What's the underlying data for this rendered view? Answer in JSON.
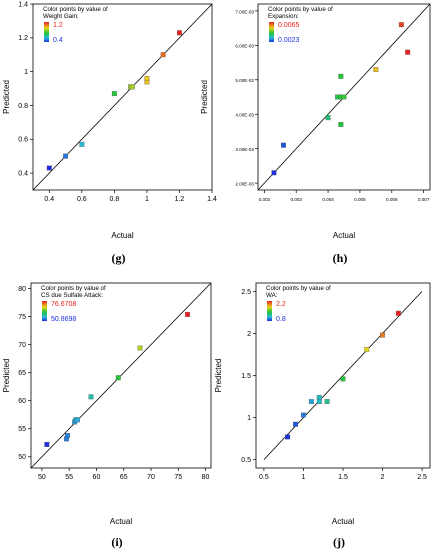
{
  "chart_data": [
    {
      "type": "scatter",
      "panel_label": "(g)",
      "xlabel": "Actual",
      "ylabel": "Predicted",
      "xlim": [
        0.3,
        1.4
      ],
      "ylim": [
        0.3,
        1.4
      ],
      "xticks": [
        0.4,
        0.6,
        0.8,
        1.0,
        1.2,
        1.4
      ],
      "yticks": [
        0.4,
        0.6,
        0.8,
        1.0,
        1.2,
        1.4
      ],
      "xtick_labels": [
        "0.4",
        "0.6",
        "0.8",
        "1",
        "1.2",
        "1.4"
      ],
      "ytick_labels": [
        "0.4",
        "0.6",
        "0.8",
        "1",
        "1.2",
        "1.4"
      ],
      "legend": {
        "title_lines": [
          "Color points by value of",
          "Weight Gain:"
        ],
        "max": "1.2",
        "min": "0.4",
        "high": 1.2,
        "low": 0.4
      },
      "diagonal": [
        0.3,
        1.4
      ],
      "x": [
        0.4,
        0.5,
        0.6,
        0.8,
        0.9,
        0.91,
        1.0,
        1.0,
        1.1,
        1.2
      ],
      "y": [
        0.43,
        0.5,
        0.57,
        0.87,
        0.91,
        0.91,
        0.94,
        0.96,
        1.1,
        1.23
      ]
    },
    {
      "type": "scatter",
      "panel_label": "(h)",
      "xlabel": "Actual",
      "ylabel": "Predicted",
      "xlim": [
        0.0018,
        0.0072
      ],
      "ylim": [
        0.0018,
        0.0072
      ],
      "xticks": [
        0.002,
        0.003,
        0.004,
        0.005,
        0.006,
        0.007
      ],
      "yticks": [
        0.002,
        0.003,
        0.004,
        0.005,
        0.006,
        0.007
      ],
      "xtick_labels": [
        "0.002",
        "0.003",
        "0.004",
        "0.005",
        "0.006",
        "0.007"
      ],
      "ytick_labels": [
        "2.00E-03",
        "3.00E-03",
        "4.00E-03",
        "5.00E-03",
        "6.00E-03",
        "7.00E-03"
      ],
      "legend": {
        "title_lines": [
          "Color points by value of",
          "Expansion:"
        ],
        "max": "0.0065",
        "min": "0.0023",
        "high": 0.0065,
        "low": 0.0023
      },
      "diagonal": [
        0.0018,
        0.0072
      ],
      "x": [
        0.0023,
        0.0026,
        0.004,
        0.0043,
        0.0044,
        0.0045,
        0.0044,
        0.0044,
        0.0055,
        0.0063,
        0.0065
      ],
      "y": [
        0.0023,
        0.0031,
        0.0039,
        0.0045,
        0.0045,
        0.0045,
        0.0051,
        0.0037,
        0.0053,
        0.0066,
        0.0058
      ]
    },
    {
      "type": "scatter",
      "panel_label": "(i)",
      "xlabel": "Actual",
      "ylabel": "Predicted",
      "xlim": [
        48,
        81
      ],
      "ylim": [
        48,
        81
      ],
      "xticks": [
        50,
        55,
        60,
        65,
        70,
        75,
        80
      ],
      "yticks": [
        50,
        55,
        60,
        65,
        70,
        75,
        80
      ],
      "xtick_labels": [
        "50",
        "55",
        "60",
        "65",
        "70",
        "75",
        "80"
      ],
      "ytick_labels": [
        "50",
        "55",
        "60",
        "65",
        "70",
        "75",
        "80"
      ],
      "legend": {
        "title_lines": [
          "Color points by value of",
          "CS due Sulfate Attack:"
        ],
        "max": "76.6708",
        "min": "50.8698",
        "high": 76.6708,
        "low": 50.8698
      },
      "diagonal": [
        48,
        81
      ],
      "x": [
        50.9,
        54.5,
        54.7,
        56.0,
        56.2,
        56.5,
        59.0,
        64.0,
        68.0,
        76.7
      ],
      "y": [
        52.2,
        53.2,
        53.8,
        56.2,
        56.6,
        56.6,
        60.7,
        64.1,
        69.4,
        75.4
      ]
    },
    {
      "type": "scatter",
      "panel_label": "(j)",
      "xlabel": "Actual",
      "ylabel": "Predicted",
      "xlim": [
        0.4,
        2.6
      ],
      "ylim": [
        0.4,
        2.6
      ],
      "xticks": [
        0.5,
        1.0,
        1.5,
        2.0,
        2.5
      ],
      "yticks": [
        0.5,
        1.0,
        1.5,
        2.0,
        2.5
      ],
      "xtick_labels": [
        "0.5",
        "1",
        "1.5",
        "2",
        "2.5"
      ],
      "ytick_labels": [
        "0.5",
        "1",
        "1.5",
        "2",
        "2.5"
      ],
      "legend": {
        "title_lines": [
          "Color points by value of",
          "WA:"
        ],
        "max": "2.2",
        "min": "0.8",
        "high": 2.2,
        "low": 0.8
      },
      "diagonal": [
        0.5,
        2.5
      ],
      "x": [
        0.8,
        0.9,
        1.0,
        1.1,
        1.2,
        1.3,
        1.2,
        1.5,
        1.8,
        2.0,
        2.2
      ],
      "y": [
        0.77,
        0.92,
        1.03,
        1.19,
        1.19,
        1.19,
        1.24,
        1.46,
        1.81,
        1.98,
        2.24
      ]
    }
  ]
}
